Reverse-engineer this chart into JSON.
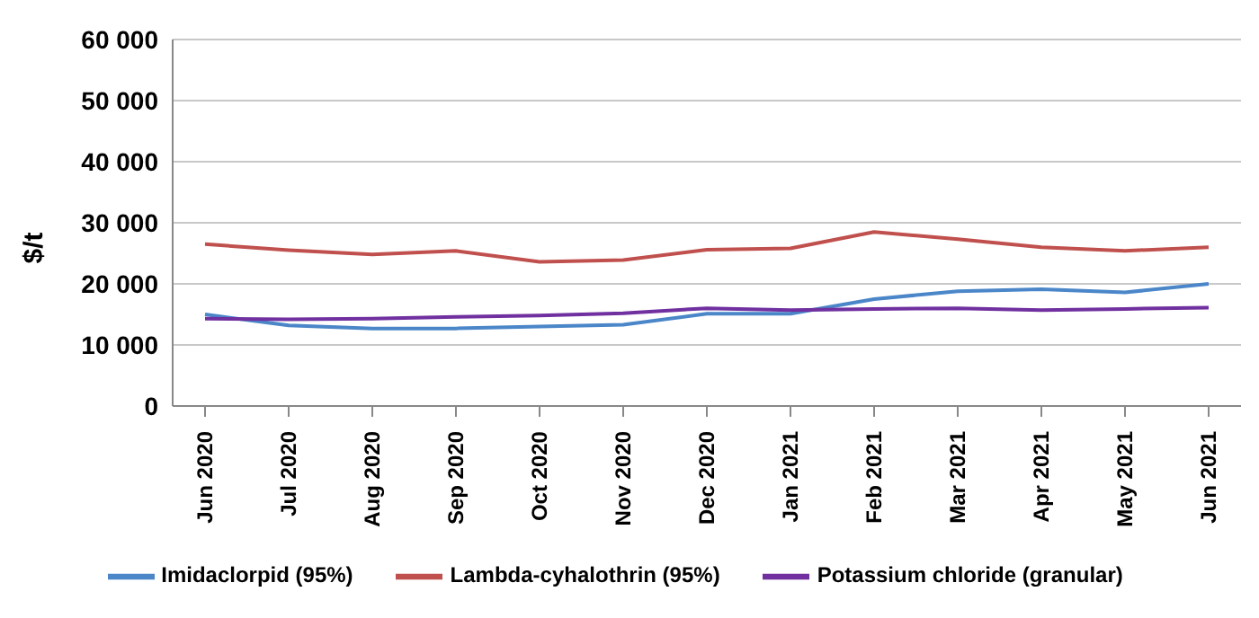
{
  "chart_data": {
    "type": "line",
    "ylabel": "$/t",
    "categories": [
      "Jun 2020",
      "Jul 2020",
      "Aug 2020",
      "Sep 2020",
      "Oct 2020",
      "Nov 2020",
      "Dec 2020",
      "Jan 2021",
      "Feb 2021",
      "Mar 2021",
      "Apr 2021",
      "May 2021",
      "Jun 2021"
    ],
    "series": [
      {
        "name": "Imidaclorpid (95%)",
        "color": "#4a86c8",
        "values": [
          15000,
          13200,
          12700,
          12700,
          13000,
          13300,
          15100,
          15100,
          17500,
          18800,
          19100,
          18600,
          20000
        ]
      },
      {
        "name": "Lambda-cyhalothrin (95%)",
        "color": "#c0504d",
        "values": [
          26500,
          25500,
          24800,
          25400,
          23600,
          23900,
          25600,
          25800,
          28500,
          27300,
          26000,
          25400,
          26000
        ]
      },
      {
        "name": "Potassium chloride (granular)",
        "color": "#7030a0",
        "values": [
          14300,
          14200,
          14300,
          14600,
          14800,
          15200,
          16000,
          15700,
          15900,
          16000,
          15700,
          15900,
          16100
        ]
      }
    ],
    "ylim": [
      0,
      60000
    ],
    "yticks": [
      0,
      {
        "value": 10000,
        "label": "10 000"
      },
      {
        "value": 20000,
        "label": "20 000"
      },
      {
        "value": 30000,
        "label": "30 000"
      },
      {
        "value": 40000,
        "label": "40 000"
      },
      {
        "value": 50000,
        "label": "50 000"
      },
      {
        "value": 60000,
        "label": "60 000"
      }
    ],
    "grid": "y",
    "legend": "bottom",
    "marker": "none",
    "line_style": "solid"
  }
}
